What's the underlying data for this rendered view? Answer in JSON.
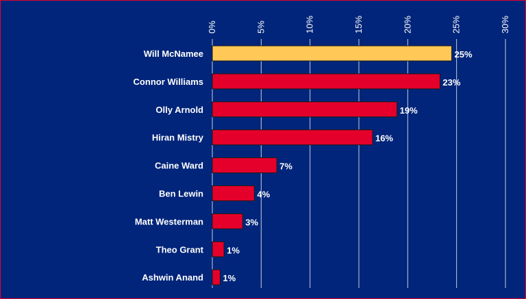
{
  "colors": {
    "background": "#00257a",
    "bar": "#e4002b",
    "highlight_bar": "#ffc857",
    "bar_outline": "#1a1a1a",
    "gridline": "#c8cfe0",
    "text": "#ffffff",
    "frame_border": "#e8002a"
  },
  "chart_data": {
    "type": "bar",
    "orientation": "horizontal",
    "categories": [
      "Will McNamee",
      "Connor Williams",
      "Olly Arnold",
      "Hiran Mistry",
      "Caine Ward",
      "Ben Lewin",
      "Matt Westerman",
      "Theo Grant",
      "Ashwin Anand"
    ],
    "values": [
      24.5,
      23.3,
      18.9,
      16.4,
      6.6,
      4.3,
      3.1,
      1.2,
      0.8
    ],
    "data_labels": [
      "25%",
      "23%",
      "19%",
      "16%",
      "7%",
      "4%",
      "3%",
      "1%",
      "1%"
    ],
    "highlight_index": 0,
    "xlim": [
      0,
      30
    ],
    "x_ticks": [
      0,
      5,
      10,
      15,
      20,
      25,
      30
    ],
    "x_tick_labels": [
      "0%",
      "5%",
      "10%",
      "15%",
      "20%",
      "25%",
      "30%"
    ],
    "x_tick_label_rotation": "vertical",
    "x_axis_position": "top",
    "grid": true,
    "legend": "none"
  }
}
